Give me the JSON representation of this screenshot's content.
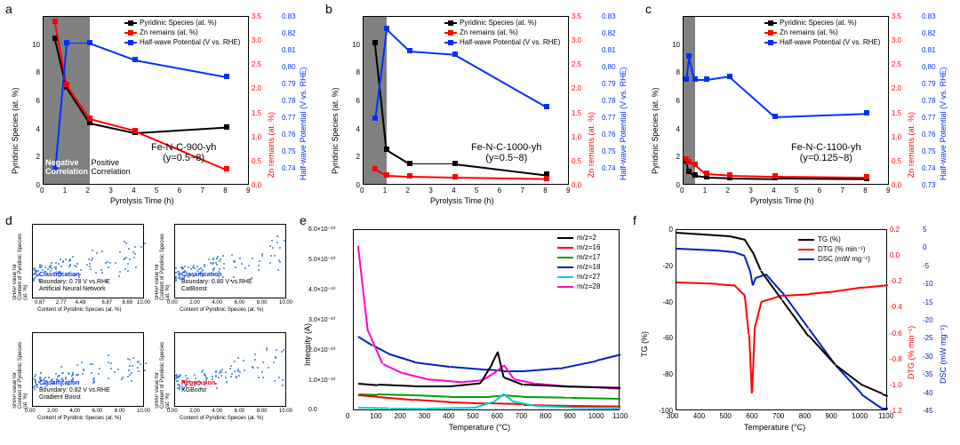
{
  "colors": {
    "pyridinic": "#000000",
    "zn": "#ff0000",
    "halfwave": "#0030ff",
    "shap_dot": "#3a7fd6",
    "grey_band": "#808080",
    "mz2": "#000000",
    "mz16": "#ff0000",
    "mz17": "#00a000",
    "mz18": "#0020c0",
    "mz27": "#00d0d0",
    "mz28": "#ff00d0",
    "tg": "#000000",
    "dtg": "#ff0000",
    "dsc": "#0020c0"
  },
  "ax_label_fontsize": 9,
  "tick_fontsize": 8,
  "letters": {
    "a": "a",
    "b": "b",
    "c": "c",
    "d": "d",
    "e": "e",
    "f": "f"
  },
  "panelA": {
    "x": {
      "min": 0,
      "max": 9,
      "ticks": [
        0,
        1,
        2,
        3,
        4,
        5,
        6,
        7,
        8,
        9
      ],
      "label": "Pyrolysis Time (h)"
    },
    "yL": {
      "min": 0,
      "max": 12,
      "ticks": [
        0,
        2,
        4,
        6,
        8,
        10
      ],
      "label": "Pyridinic Species (at. %)",
      "color": "#000000"
    },
    "yR1": {
      "min": 0,
      "max": 3.5,
      "ticks": [
        0.0,
        0.5,
        1.0,
        1.5,
        2.0,
        2.5,
        3.0,
        3.5
      ],
      "label": "Zn remains (at. %)",
      "color": "#ff0000"
    },
    "yR2": {
      "min": 0.73,
      "max": 0.83,
      "ticks": [
        0.74,
        0.75,
        0.76,
        0.77,
        0.78,
        0.79,
        0.8,
        0.81,
        0.82,
        0.83
      ],
      "label": "Half-wave Potential (V vs. RHE)",
      "color": "#0030ff"
    },
    "grey_until": 2,
    "legend": [
      {
        "label": "Pyridinic Species (at. %)",
        "color": "#000000"
      },
      {
        "label": "Zn remains (at. %)",
        "color": "#ff0000"
      },
      {
        "label": "Half-wave Potential (V vs. RHE)",
        "color": "#0030ff"
      }
    ],
    "series": {
      "pyridinic": [
        [
          0.5,
          10.5
        ],
        [
          1,
          7.0
        ],
        [
          2,
          4.5
        ],
        [
          4,
          3.8
        ],
        [
          8,
          4.2
        ]
      ],
      "zn": [
        [
          0.5,
          3.4
        ],
        [
          1,
          2.1
        ],
        [
          2,
          1.4
        ],
        [
          4,
          1.15
        ],
        [
          8,
          0.35
        ]
      ],
      "halfwave": [
        [
          0.5,
          0.74
        ],
        [
          1,
          0.815
        ],
        [
          2,
          0.815
        ],
        [
          4,
          0.805
        ],
        [
          8,
          0.795
        ]
      ]
    },
    "title": "Fe-N-C-900-yh\n(y=0.5~8)",
    "neg": "Negative\nCorrelation",
    "pos": "Positive\nCorrelation"
  },
  "panelB": {
    "x": {
      "min": 0,
      "max": 9,
      "ticks": [
        0,
        1,
        2,
        3,
        4,
        5,
        6,
        7,
        8,
        9
      ],
      "label": "Pyrolysis Time (h)"
    },
    "yL": {
      "min": 0,
      "max": 12,
      "ticks": [
        0,
        2,
        4,
        6,
        8,
        10
      ],
      "label": "Pyridinic Species (at. %)",
      "color": "#000000"
    },
    "yR1": {
      "min": 0,
      "max": 3.5,
      "ticks": [
        0.0,
        0.5,
        1.0,
        1.5,
        2.0,
        2.5,
        3.0,
        3.5
      ],
      "label": "Zn remains (at. %)",
      "color": "#ff0000"
    },
    "yR2": {
      "min": 0.73,
      "max": 0.83,
      "ticks": [
        0.74,
        0.75,
        0.76,
        0.77,
        0.78,
        0.79,
        0.8,
        0.81,
        0.82,
        0.83
      ],
      "label": "Half-wave Potential (V vs. RHE)",
      "color": "#0030ff"
    },
    "grey_until": 1,
    "legend": [
      {
        "label": "Pyridinic Species (at. %)",
        "color": "#000000"
      },
      {
        "label": "Zn remains (at. %)",
        "color": "#ff0000"
      },
      {
        "label": "Half-wave Potential (V vs. RHE)",
        "color": "#0030ff"
      }
    ],
    "series": {
      "pyridinic": [
        [
          0.5,
          10.2
        ],
        [
          1,
          2.6
        ],
        [
          2,
          1.6
        ],
        [
          4,
          1.6
        ],
        [
          8,
          0.8
        ]
      ],
      "zn": [
        [
          0.5,
          0.35
        ],
        [
          1,
          0.22
        ],
        [
          2,
          0.2
        ],
        [
          4,
          0.18
        ],
        [
          8,
          0.15
        ]
      ],
      "halfwave": [
        [
          0.5,
          0.77
        ],
        [
          1,
          0.823
        ],
        [
          2,
          0.81
        ],
        [
          4,
          0.808
        ],
        [
          8,
          0.777
        ]
      ]
    },
    "title": "Fe-N-C-1000-yh\n(y=0.5~8)"
  },
  "panelC": {
    "x": {
      "min": 0,
      "max": 9,
      "ticks": [
        0,
        1,
        2,
        3,
        4,
        5,
        6,
        7,
        8,
        9
      ],
      "label": "Pyrolysis Time (h)"
    },
    "yL": {
      "min": 0,
      "max": 12,
      "ticks": [
        0,
        2,
        4,
        6,
        8,
        10
      ],
      "label": "Pyridinic Species (at. %)",
      "color": "#000000"
    },
    "yR1": {
      "min": 0,
      "max": 3.5,
      "ticks": [
        0.0,
        0.5,
        1.0,
        1.5,
        2.0,
        2.5,
        3.0,
        3.5
      ],
      "label": "Zn remains (at. %)",
      "color": "#ff0000"
    },
    "yR2": {
      "min": 0.73,
      "max": 0.83,
      "ticks": [
        0.73,
        0.74,
        0.75,
        0.76,
        0.77,
        0.78,
        0.79,
        0.8,
        0.81,
        0.82,
        0.83
      ],
      "label": "Half-wave Potential (V vs. RHE)",
      "color": "#0030ff"
    },
    "grey_until": 0.5,
    "legend": [
      {
        "label": "Pyridinic Species (at. %)",
        "color": "#000000"
      },
      {
        "label": "Zn remains (at. %)",
        "color": "#ff0000"
      },
      {
        "label": "Half-wave Potential (V vs. RHE)",
        "color": "#0030ff"
      }
    ],
    "series": {
      "pyridinic": [
        [
          0.125,
          1.8
        ],
        [
          0.25,
          1.0
        ],
        [
          0.5,
          0.75
        ],
        [
          1,
          0.65
        ],
        [
          2,
          0.6
        ],
        [
          4,
          0.55
        ],
        [
          8,
          0.5
        ]
      ],
      "zn": [
        [
          0.125,
          0.55
        ],
        [
          0.25,
          0.5
        ],
        [
          0.5,
          0.45
        ],
        [
          1,
          0.25
        ],
        [
          2,
          0.22
        ],
        [
          4,
          0.2
        ],
        [
          8,
          0.18
        ]
      ],
      "halfwave": [
        [
          0.125,
          0.793
        ],
        [
          0.25,
          0.807
        ],
        [
          0.5,
          0.793
        ],
        [
          1,
          0.793
        ],
        [
          2,
          0.795
        ],
        [
          4,
          0.771
        ],
        [
          8,
          0.773
        ]
      ]
    },
    "title": "Fe-N-C-1100-yh\n(y=0.125~8)"
  },
  "panelD": {
    "grid": [
      {
        "header": "Classification",
        "header_color": "#0030ff",
        "line": "Boundary: 0.78 V vs.RHE",
        "model": "Artificial Neural Network",
        "xmax": 10,
        "xticks": [
          0.87,
          2.77,
          4.49,
          6.87,
          8.69,
          10.0
        ],
        "ymin": -0.15,
        "ymax": 0.3
      },
      {
        "header": "Classification",
        "header_color": "#0030ff",
        "line": "Boundary: 0.80 V vs.RHE",
        "model": "CatBoost",
        "xmax": 10,
        "xticks": [
          0.0,
          2.0,
          4.0,
          6.0,
          8.0,
          10.0
        ],
        "ymin": -0.3,
        "ymax": 0.3
      },
      {
        "header": "Classification",
        "header_color": "#0030ff",
        "line": "Boundary: 0.82 V vs.RHE",
        "model": "Gradient Boost",
        "xmax": 10,
        "xticks": [
          0.0,
          2.0,
          4.0,
          6.0,
          8.0,
          10.0
        ],
        "ymin": -0.08,
        "ymax": 0.08
      },
      {
        "header": "Regression",
        "header_color": "#ff0000",
        "line": "",
        "model": "XGBoost",
        "xmax": 10,
        "xticks": [
          0.0,
          2.0,
          4.0,
          6.0,
          8.0,
          10.0
        ],
        "ymin": -0.02,
        "ymax": 0.035
      }
    ],
    "xlabel": "Content of Pyridinic Species (at. %)",
    "ylabel": "SHAP value for\nContent of Pyridinic Species (at. %)",
    "dot_color": "#3a7fd6",
    "scatter_seed": 73
  },
  "panelE": {
    "x": {
      "min": 0,
      "max": 1100,
      "ticks": [
        0,
        100,
        200,
        300,
        400,
        500,
        600,
        700,
        800,
        900,
        1000,
        1100
      ],
      "label": "Temperature (°C)"
    },
    "y": {
      "min": 0,
      "max": 6e-10,
      "ticks": [
        0,
        1,
        2,
        3,
        4,
        5,
        6
      ],
      "tick_suffix": ".0×10⁻¹⁰",
      "zero": "0.0",
      "label": "Intensity (A)"
    },
    "legend": [
      {
        "label": "m/z=2",
        "color": "#000000"
      },
      {
        "label": "m/z=16",
        "color": "#ff0000"
      },
      {
        "label": "m/z=17",
        "color": "#00a000"
      },
      {
        "label": "m/z=18",
        "color": "#0020c0"
      },
      {
        "label": "m/z=27",
        "color": "#00d0d0"
      },
      {
        "label": "m/z=28",
        "color": "#ff00d0"
      }
    ],
    "series": {
      "mz28": [
        [
          20,
          5.5e-10
        ],
        [
          60,
          2.7e-10
        ],
        [
          120,
          1.6e-10
        ],
        [
          200,
          1.3e-10
        ],
        [
          300,
          1.1e-10
        ],
        [
          450,
          1e-10
        ],
        [
          530,
          1.05e-10
        ],
        [
          580,
          1.3e-10
        ],
        [
          620,
          1.55e-10
        ],
        [
          660,
          1.1e-10
        ],
        [
          750,
          9.5e-11
        ],
        [
          900,
          8.5e-11
        ],
        [
          1050,
          8e-11
        ],
        [
          1100,
          7.8e-11
        ]
      ],
      "mz18": [
        [
          20,
          2.5e-10
        ],
        [
          80,
          2.2e-10
        ],
        [
          150,
          1.9e-10
        ],
        [
          250,
          1.65e-10
        ],
        [
          400,
          1.5e-10
        ],
        [
          550,
          1.4e-10
        ],
        [
          620,
          1.35e-10
        ],
        [
          700,
          1.35e-10
        ],
        [
          850,
          1.45e-10
        ],
        [
          1000,
          1.7e-10
        ],
        [
          1100,
          1.9e-10
        ]
      ],
      "mz2": [
        [
          20,
          9.5e-11
        ],
        [
          100,
          9e-11
        ],
        [
          250,
          8.5e-11
        ],
        [
          400,
          8.5e-11
        ],
        [
          520,
          9.5e-11
        ],
        [
          570,
          1.6e-10
        ],
        [
          595,
          2e-10
        ],
        [
          620,
          1.15e-10
        ],
        [
          700,
          9e-11
        ],
        [
          850,
          8.5e-11
        ],
        [
          1000,
          8.2e-11
        ],
        [
          1100,
          8e-11
        ]
      ],
      "mz17": [
        [
          20,
          6e-11
        ],
        [
          100,
          5.8e-11
        ],
        [
          250,
          5.5e-11
        ],
        [
          400,
          5e-11
        ],
        [
          550,
          5e-11
        ],
        [
          620,
          5.5e-11
        ],
        [
          700,
          5e-11
        ],
        [
          900,
          4.8e-11
        ],
        [
          1100,
          4.5e-11
        ]
      ],
      "mz16": [
        [
          20,
          5.5e-11
        ],
        [
          100,
          5e-11
        ],
        [
          250,
          4e-11
        ],
        [
          400,
          3.2e-11
        ],
        [
          550,
          2.8e-11
        ],
        [
          700,
          2.5e-11
        ],
        [
          900,
          2.2e-11
        ],
        [
          1100,
          2e-11
        ]
      ],
      "mz27": [
        [
          20,
          1.5e-11
        ],
        [
          150,
          1.3e-11
        ],
        [
          300,
          1.2e-11
        ],
        [
          500,
          1.5e-11
        ],
        [
          580,
          3.5e-11
        ],
        [
          620,
          6e-11
        ],
        [
          660,
          3.5e-11
        ],
        [
          750,
          2e-11
        ],
        [
          900,
          1.5e-11
        ],
        [
          1100,
          1.2e-11
        ]
      ]
    }
  },
  "panelF": {
    "x": {
      "min": 300,
      "max": 1100,
      "ticks": [
        300,
        400,
        500,
        600,
        700,
        800,
        900,
        1000,
        1100
      ],
      "label": "Temperature (°C)"
    },
    "yL": {
      "min": -100,
      "max": 0,
      "ticks": [
        -100,
        -80,
        -60,
        -40,
        -20,
        0
      ],
      "label": "TG (%)",
      "color": "#000000"
    },
    "yR1": {
      "min": -1.2,
      "max": 0.2,
      "ticks": [
        -1.2,
        -1.0,
        -0.8,
        -0.6,
        -0.4,
        -0.2,
        0.0,
        0.2
      ],
      "label": "DTG (% min⁻¹)",
      "color": "#ff0000"
    },
    "yR2": {
      "min": -45,
      "max": 5,
      "ticks": [
        -45,
        -40,
        -35,
        -30,
        -25,
        -20,
        -15,
        -10,
        -5,
        0,
        5
      ],
      "label": "DSC (mW mg⁻¹)",
      "color": "#0020c0"
    },
    "legend": [
      {
        "label": "TG (%)",
        "color": "#000000"
      },
      {
        "label": "DTG (% min⁻¹)",
        "color": "#ff0000"
      },
      {
        "label": "DSC (mW mg⁻¹)",
        "color": "#0020c0"
      }
    ],
    "series": {
      "tg": [
        [
          300,
          -1
        ],
        [
          400,
          -2
        ],
        [
          500,
          -3
        ],
        [
          560,
          -5
        ],
        [
          590,
          -12
        ],
        [
          620,
          -22
        ],
        [
          700,
          -38
        ],
        [
          800,
          -58
        ],
        [
          900,
          -74
        ],
        [
          1000,
          -85
        ],
        [
          1080,
          -90
        ],
        [
          1100,
          -91
        ]
      ],
      "dtg": [
        [
          300,
          -0.2
        ],
        [
          450,
          -0.21
        ],
        [
          520,
          -0.22
        ],
        [
          560,
          -0.3
        ],
        [
          575,
          -0.6
        ],
        [
          585,
          -1.05
        ],
        [
          595,
          -0.55
        ],
        [
          620,
          -0.35
        ],
        [
          700,
          -0.3
        ],
        [
          800,
          -0.29
        ],
        [
          900,
          -0.27
        ],
        [
          1000,
          -0.24
        ],
        [
          1100,
          -0.22
        ]
      ],
      "dsc": [
        [
          300,
          0
        ],
        [
          450,
          -0.5
        ],
        [
          520,
          -1
        ],
        [
          560,
          -2
        ],
        [
          580,
          -6
        ],
        [
          590,
          -10
        ],
        [
          600,
          -8
        ],
        [
          640,
          -7
        ],
        [
          700,
          -12
        ],
        [
          800,
          -22
        ],
        [
          900,
          -32
        ],
        [
          1000,
          -40
        ],
        [
          1080,
          -44
        ],
        [
          1100,
          -44
        ]
      ]
    }
  }
}
